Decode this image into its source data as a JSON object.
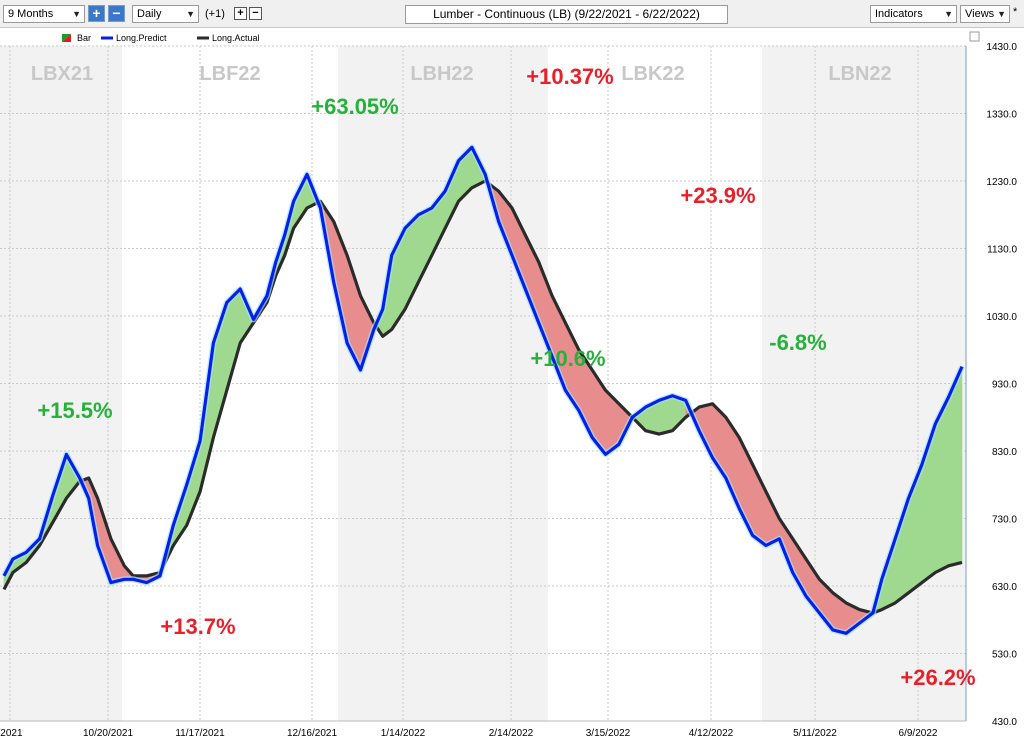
{
  "toolbar": {
    "period": "9 Months",
    "interval": "Daily",
    "offset": "(+1)",
    "plus_label": "+",
    "minus_label": "−",
    "chart_title": "Lumber - Continuous (LB) (9/22/2021 - 6/22/2022)",
    "indicators": "Indicators",
    "views": "Views",
    "views_star": "*"
  },
  "colors": {
    "predict": "#0a1ee8",
    "actual": "#2b2b2b",
    "gain_fill": "#9fd98f",
    "loss_fill": "#e88d8d",
    "gain_text": "#26b13a",
    "loss_text": "#e8202a",
    "contract_band": "#f2f2f2",
    "contract_label": "#c8c8c8",
    "grid": "#c9c9c9"
  },
  "chart_data": {
    "type": "line",
    "title": "Lumber - Continuous (LB) (9/22/2021 - 6/22/2022)",
    "legend": [
      "Bar",
      "Long.Predict",
      "Long.Actual"
    ],
    "legend_position": "top-left",
    "grid": true,
    "ylim": [
      430,
      1430
    ],
    "yticks": [
      "1430.0",
      "1330.0",
      "1230.0",
      "1130.0",
      "1030.0",
      "930.0",
      "830.0",
      "730.0",
      "630.0",
      "530.0",
      "430.0"
    ],
    "xticks": [
      "/2021",
      "10/20/2021",
      "11/17/2021",
      "12/16/2021",
      "1/14/2022",
      "2/14/2022",
      "3/15/2022",
      "4/12/2022",
      "5/11/2022",
      "6/9/2022"
    ],
    "contracts": [
      "LBX21",
      "LBF22",
      "LBH22",
      "LBK22",
      "LBN22"
    ],
    "series": [
      {
        "name": "Long.Predict",
        "x": [
          0,
          2,
          5,
          8,
          11,
          14,
          17,
          19,
          21,
          24,
          27,
          29,
          32,
          35,
          38,
          41,
          44,
          47,
          50,
          53,
          56,
          59,
          61,
          63,
          65,
          68,
          71,
          74,
          77,
          80,
          83,
          85,
          87,
          90,
          93,
          96,
          99,
          102,
          105,
          108,
          111,
          114,
          117,
          120,
          123,
          126,
          129,
          132,
          135,
          138,
          141,
          144,
          147,
          150,
          153,
          156,
          159,
          162,
          165,
          168,
          171,
          174,
          177,
          180,
          183,
          186,
          189,
          192,
          195,
          197,
          200,
          203,
          206,
          209,
          212,
          215
        ],
        "values": [
          645,
          670,
          680,
          700,
          765,
          825,
          790,
          760,
          690,
          635,
          640,
          640,
          635,
          645,
          720,
          780,
          845,
          990,
          1050,
          1070,
          1025,
          1060,
          1110,
          1150,
          1200,
          1240,
          1190,
          1080,
          990,
          950,
          1010,
          1040,
          1120,
          1160,
          1180,
          1190,
          1215,
          1260,
          1280,
          1240,
          1170,
          1120,
          1070,
          1020,
          970,
          920,
          890,
          850,
          825,
          840,
          880,
          895,
          905,
          912,
          905,
          860,
          820,
          790,
          745,
          705,
          690,
          700,
          650,
          615,
          590,
          565,
          560,
          575,
          590,
          640,
          700,
          760,
          810,
          870,
          910,
          955
        ]
      },
      {
        "name": "Long.Actual",
        "x": [
          0,
          2,
          5,
          8,
          11,
          14,
          17,
          19,
          21,
          24,
          27,
          29,
          32,
          35,
          38,
          41,
          44,
          47,
          50,
          53,
          56,
          59,
          61,
          63,
          65,
          68,
          71,
          74,
          77,
          80,
          83,
          85,
          87,
          90,
          93,
          96,
          99,
          102,
          105,
          108,
          111,
          114,
          117,
          120,
          123,
          126,
          129,
          132,
          135,
          138,
          141,
          144,
          147,
          150,
          153,
          156,
          159,
          162,
          165,
          168,
          171,
          174,
          177,
          180,
          183,
          186,
          189,
          192,
          195,
          197,
          200,
          203,
          206,
          209,
          212,
          215
        ],
        "values": [
          625,
          650,
          665,
          690,
          725,
          760,
          785,
          790,
          760,
          700,
          660,
          645,
          645,
          650,
          690,
          720,
          770,
          850,
          920,
          990,
          1020,
          1050,
          1090,
          1120,
          1160,
          1190,
          1200,
          1170,
          1120,
          1060,
          1020,
          1000,
          1010,
          1040,
          1080,
          1120,
          1160,
          1200,
          1220,
          1230,
          1215,
          1190,
          1150,
          1110,
          1060,
          1020,
          980,
          950,
          920,
          900,
          880,
          860,
          855,
          860,
          880,
          895,
          900,
          880,
          850,
          810,
          770,
          730,
          700,
          670,
          640,
          620,
          605,
          595,
          590,
          595,
          605,
          620,
          635,
          650,
          660,
          665
        ]
      }
    ],
    "annotations": [
      {
        "text": "+15.5%",
        "color": "gain"
      },
      {
        "text": "+13.7%",
        "color": "loss"
      },
      {
        "text": "+63.05%",
        "color": "gain"
      },
      {
        "text": "+10.37%",
        "color": "loss"
      },
      {
        "text": "+10.6%",
        "color": "gain"
      },
      {
        "text": "+23.9%",
        "color": "loss"
      },
      {
        "text": "-6.8%",
        "color": "gain"
      },
      {
        "text": "+26.2%",
        "color": "loss"
      }
    ]
  }
}
